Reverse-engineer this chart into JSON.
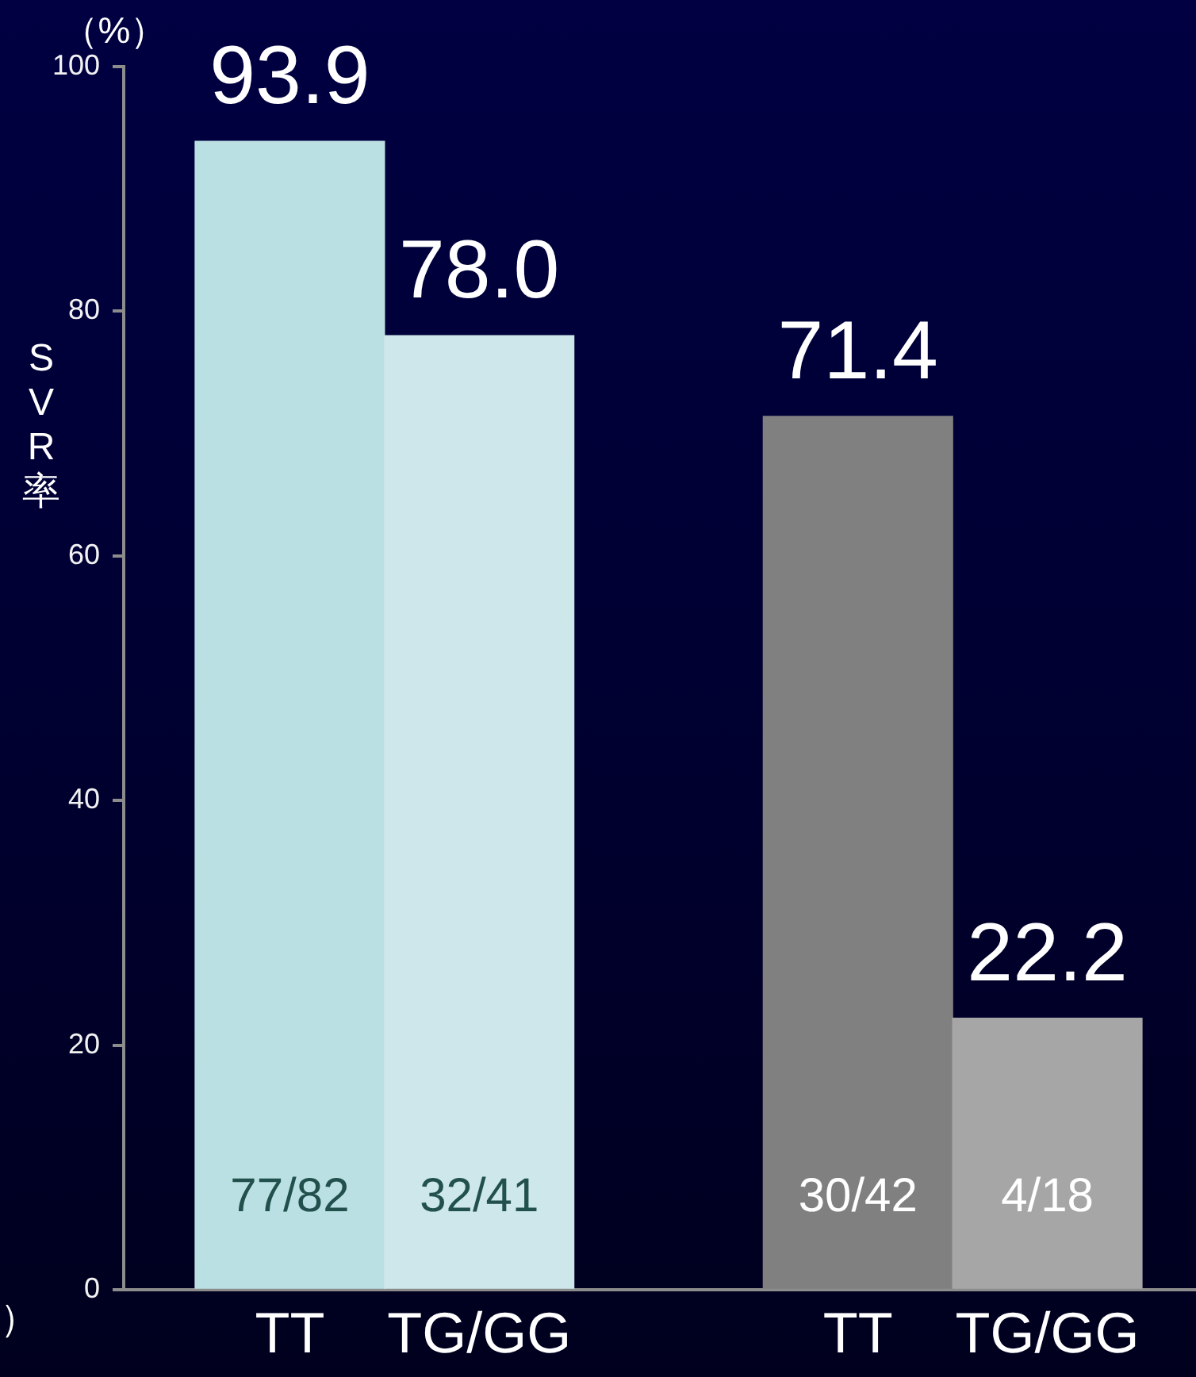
{
  "chart_data": {
    "type": "bar",
    "ylabel": "SVR率",
    "annotations": [
      "（%）",
      "）",
      "77/82",
      "32/41",
      "30/42",
      "4/18"
    ],
    "categories": [
      "TT",
      "TG/GG",
      null,
      "TT",
      "TG/GG"
    ],
    "values": [
      93.9,
      78.0,
      null,
      71.4,
      22.2
    ],
    "colors": [
      "#bae0e3",
      "#cde7eb",
      null,
      "#808080",
      "#a6a6a6"
    ],
    "value_labels": [
      "93.9",
      "78.0",
      null,
      "71.4",
      "22.2"
    ],
    "ylim": [
      0,
      100
    ],
    "yticks": [
      0,
      20,
      40,
      60,
      80,
      100
    ]
  }
}
